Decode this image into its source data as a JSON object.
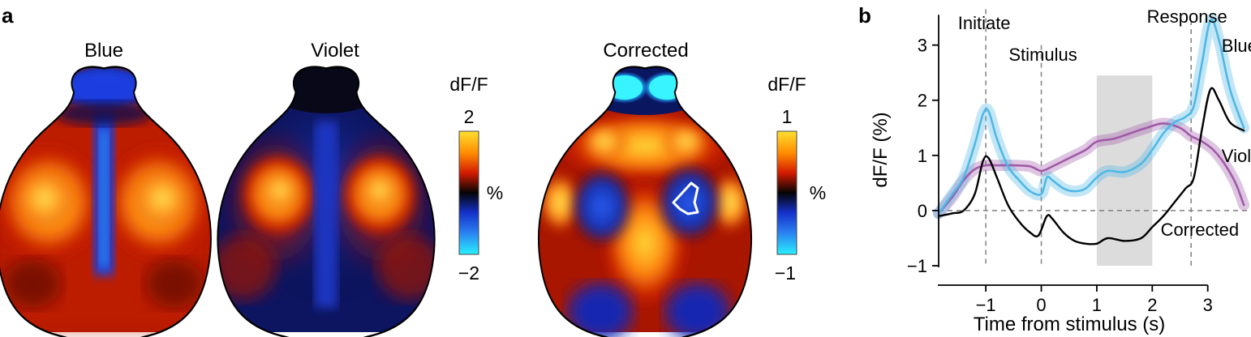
{
  "panels": {
    "a": "a",
    "b": "b"
  },
  "maps": [
    {
      "title": "Blue"
    },
    {
      "title": "Violet"
    },
    {
      "title": "Corrected"
    }
  ],
  "colorbars": [
    {
      "title": "dF/F",
      "max_label": "2",
      "min_label": "−2",
      "unit": "%",
      "max": 2,
      "min": -2
    },
    {
      "title": "dF/F",
      "max_label": "1",
      "min_label": "−1",
      "unit": "%",
      "max": 1,
      "min": -1
    }
  ],
  "colors": {
    "blue_trace": "#4fb8e6",
    "violet_trace": "#a05aa8",
    "corrected_trace": "#000000",
    "shade": "#dcdcdc",
    "guide": "#888888"
  },
  "chart_data": {
    "type": "line",
    "xlabel": "Time from stimulus (s)",
    "ylabel": "dF/F (%)",
    "xlim": [
      -1.85,
      3.75
    ],
    "ylim": [
      -1.0,
      3.7
    ],
    "xticks": [
      -1,
      0,
      1,
      2,
      3
    ],
    "xtick_labels": [
      "−1",
      "0",
      "1",
      "2",
      "3"
    ],
    "yticks": [
      -1,
      0,
      1,
      2,
      3
    ],
    "ytick_labels": [
      "−1",
      "0",
      "1",
      "2",
      "3"
    ],
    "shaded_interval": [
      1.0,
      2.0
    ],
    "shaded_ymax": 2.45,
    "event_lines": [
      {
        "label": "Initiate",
        "x": -1.0
      },
      {
        "label": "Stimulus",
        "x": 0.0
      },
      {
        "label": "Response",
        "x": 2.7
      }
    ],
    "zero_line": 0,
    "series": [
      {
        "name": "Blue",
        "x": [
          -1.85,
          -1.6,
          -1.4,
          -1.2,
          -1.05,
          -0.95,
          -0.8,
          -0.6,
          -0.4,
          -0.2,
          0.0,
          0.1,
          0.2,
          0.4,
          0.6,
          0.8,
          1.0,
          1.2,
          1.5,
          1.8,
          2.0,
          2.2,
          2.4,
          2.6,
          2.75,
          2.9,
          3.05,
          3.2,
          3.4,
          3.65
        ],
        "y": [
          -0.05,
          0.3,
          0.6,
          1.2,
          1.75,
          1.8,
          1.3,
          0.8,
          0.55,
          0.35,
          0.3,
          0.6,
          0.55,
          0.4,
          0.35,
          0.4,
          0.6,
          0.72,
          0.7,
          0.85,
          1.1,
          1.4,
          1.6,
          1.7,
          1.9,
          2.7,
          3.45,
          3.1,
          2.2,
          1.5
        ],
        "band": 0.08
      },
      {
        "name": "Violet",
        "x": [
          -1.85,
          -1.6,
          -1.4,
          -1.2,
          -1.0,
          -0.8,
          -0.5,
          -0.2,
          0.0,
          0.2,
          0.5,
          0.8,
          1.0,
          1.3,
          1.6,
          1.9,
          2.2,
          2.5,
          2.7,
          2.9,
          3.1,
          3.3,
          3.5,
          3.65
        ],
        "y": [
          -0.05,
          0.25,
          0.55,
          0.75,
          0.82,
          0.82,
          0.82,
          0.8,
          0.72,
          0.8,
          0.95,
          1.1,
          1.25,
          1.3,
          1.4,
          1.5,
          1.58,
          1.5,
          1.35,
          1.25,
          1.1,
          0.85,
          0.5,
          0.1
        ],
        "band": 0.08
      },
      {
        "name": "Corrected",
        "x": [
          -1.85,
          -1.6,
          -1.4,
          -1.2,
          -1.05,
          -0.95,
          -0.8,
          -0.6,
          -0.4,
          -0.2,
          -0.05,
          0.1,
          0.2,
          0.4,
          0.6,
          0.8,
          1.0,
          1.2,
          1.5,
          1.8,
          2.0,
          2.2,
          2.4,
          2.6,
          2.75,
          2.9,
          3.05,
          3.2,
          3.4,
          3.65
        ],
        "y": [
          -0.1,
          -0.05,
          0.0,
          0.3,
          0.9,
          0.95,
          0.6,
          0.1,
          -0.2,
          -0.4,
          -0.45,
          -0.1,
          -0.15,
          -0.4,
          -0.55,
          -0.6,
          -0.6,
          -0.5,
          -0.55,
          -0.5,
          -0.3,
          -0.1,
          0.15,
          0.4,
          0.6,
          1.5,
          2.2,
          2.0,
          1.6,
          1.45
        ],
        "band": 0
      }
    ],
    "series_labels": [
      {
        "text": "Blue",
        "x": 3.25,
        "y": 2.88
      },
      {
        "text": "Violet",
        "x": 3.25,
        "y": 0.88
      },
      {
        "text": "Corrected",
        "x": 2.15,
        "y": -0.46
      }
    ]
  }
}
